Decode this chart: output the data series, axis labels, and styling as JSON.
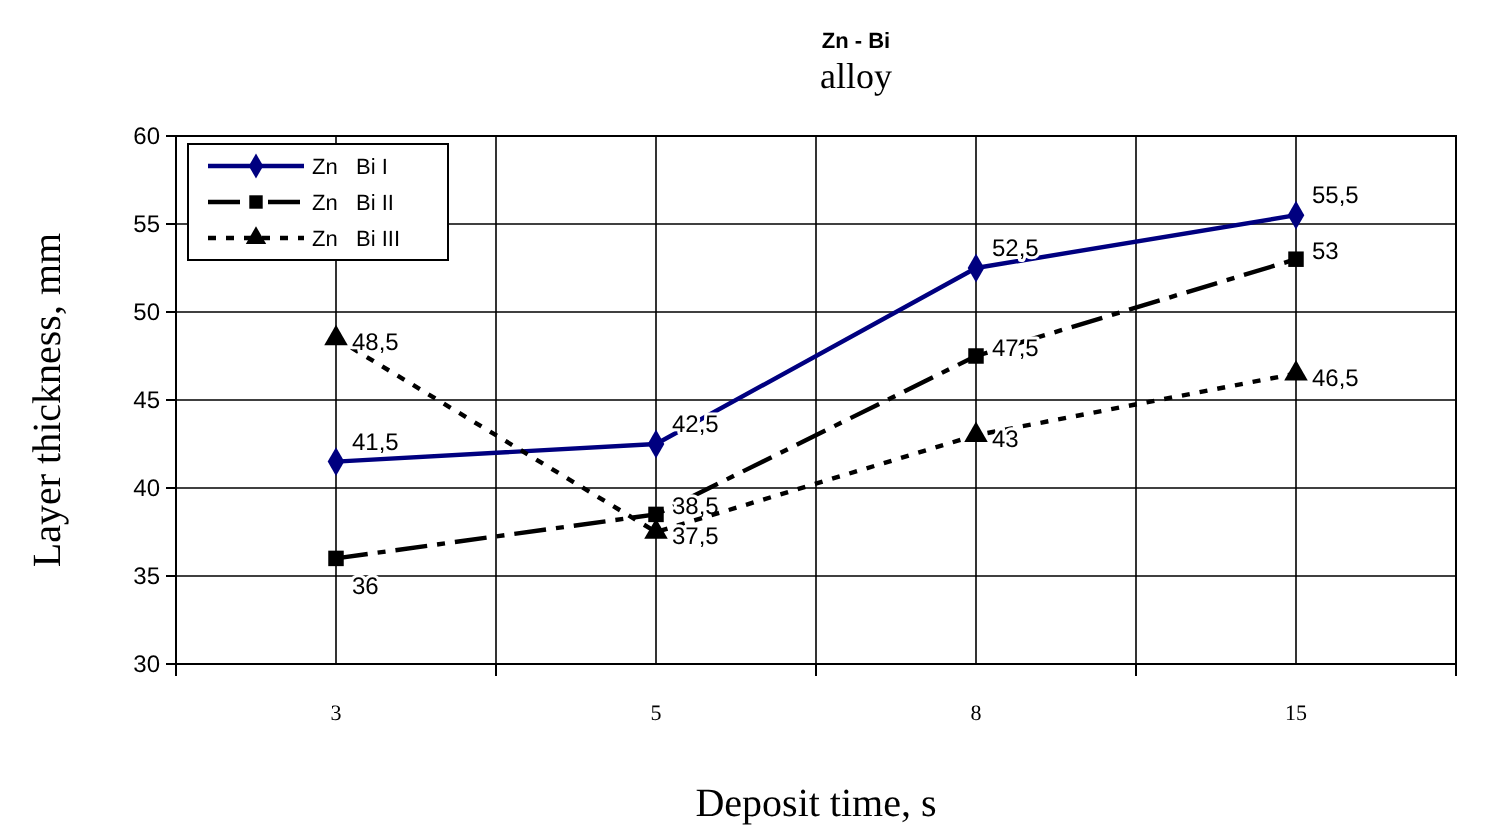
{
  "chart_data": {
    "type": "line",
    "title": "Zn - Bi",
    "subtitle": "alloy",
    "xlabel": "Deposit time, s",
    "ylabel": "Layer thickness, mm",
    "categories": [
      "3",
      "5",
      "8",
      "15"
    ],
    "ylim": [
      30,
      60
    ],
    "yticks": [
      30,
      35,
      40,
      45,
      50,
      55,
      60
    ],
    "grid": true,
    "legend": "top left",
    "series": [
      {
        "name": "Zn   Bi I",
        "color": "#000080",
        "values": [
          41.5,
          42.5,
          52.5,
          55.5
        ],
        "marker": "diamond",
        "line_style": "solid",
        "value_labels": [
          "41,5",
          "42,5",
          "52,5",
          "55,5"
        ]
      },
      {
        "name": "Zn   Bi II",
        "color": "#000000",
        "values": [
          36,
          38.5,
          47.5,
          53
        ],
        "marker": "square",
        "line_style": "dashed",
        "value_labels": [
          "36",
          "38,5",
          "47,5",
          "53"
        ]
      },
      {
        "name": "Zn   Bi III",
        "color": "#000000",
        "values": [
          48.5,
          37.5,
          43,
          46.5
        ],
        "marker": "triangle",
        "line_style": "dotted",
        "value_labels": [
          "48,5",
          "37,5",
          "43",
          "46,5"
        ]
      }
    ]
  }
}
